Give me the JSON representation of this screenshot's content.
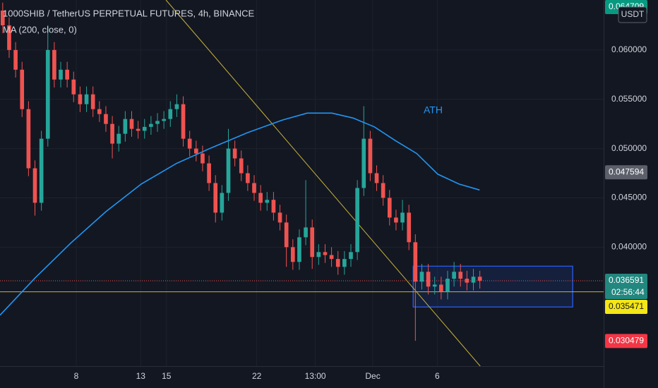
{
  "chart_data": {
    "type": "candlestick",
    "title": "1000SHIB / TetherUS PERPETUAL FUTURES, 4h, BINANCE",
    "subtitle": "MA (200, close, 0)",
    "currency": "USDT",
    "annotation": "ATH",
    "countdown": "02:56:44",
    "up_color": "#26a69a",
    "down_color": "#ef5350",
    "x": [
      2.3,
      2.8,
      3.3,
      3.8,
      4.3,
      4.8,
      5.3,
      5.8,
      6.3,
      6.8,
      7.3,
      7.8,
      8.3,
      8.8,
      9.3,
      9.8,
      10.3,
      10.8,
      11.3,
      11.8,
      12.3,
      12.8,
      13.3,
      13.8,
      14.3,
      14.8,
      15.3,
      15.8,
      16.3,
      16.8,
      17.3,
      17.8,
      18.3,
      18.8,
      19.3,
      19.8,
      20.3,
      20.8,
      21.3,
      21.8,
      22.3,
      22.8,
      23.3,
      23.8,
      24.3,
      24.8,
      25.3,
      25.8,
      26.3,
      26.8,
      27.3,
      27.8,
      28.3,
      28.8,
      29.3,
      29.8,
      30.3,
      30.8,
      31.3,
      31.8,
      32.3,
      32.8,
      33.3,
      33.8,
      34.3,
      34.8,
      35.3,
      35.8,
      36.3,
      36.8,
      37.3,
      37.8,
      38.3,
      38.8,
      39.3
    ],
    "open": [
      0.064,
      0.0625,
      0.06,
      0.058,
      0.054,
      0.048,
      0.0445,
      0.051,
      0.06,
      0.057,
      0.058,
      0.057,
      0.0555,
      0.0545,
      0.0555,
      0.054,
      0.0535,
      0.0525,
      0.0505,
      0.0515,
      0.053,
      0.052,
      0.0518,
      0.0522,
      0.0525,
      0.0528,
      0.053,
      0.054,
      0.0545,
      0.051,
      0.05,
      0.0495,
      0.0485,
      0.0465,
      0.0435,
      0.0455,
      0.05,
      0.049,
      0.0475,
      0.0465,
      0.0455,
      0.0445,
      0.0448,
      0.0435,
      0.0425,
      0.04,
      0.0385,
      0.041,
      0.042,
      0.039,
      0.0395,
      0.0392,
      0.0388,
      0.038,
      0.0388,
      0.0395,
      0.046,
      0.051,
      0.0475,
      0.0465,
      0.045,
      0.043,
      0.0425,
      0.0435,
      0.0405,
      0.0365,
      0.0375,
      0.036,
      0.0362,
      0.0355,
      0.0368,
      0.0375,
      0.0368,
      0.0364,
      0.037
    ],
    "high": [
      0.0648,
      0.0633,
      0.0608,
      0.0588,
      0.0548,
      0.0488,
      0.0518,
      0.0625,
      0.0608,
      0.0588,
      0.0588,
      0.0578,
      0.0563,
      0.0563,
      0.0563,
      0.0548,
      0.0543,
      0.0533,
      0.0523,
      0.0538,
      0.0538,
      0.0528,
      0.053,
      0.0533,
      0.0536,
      0.0538,
      0.0548,
      0.0555,
      0.0553,
      0.0518,
      0.0508,
      0.0503,
      0.0493,
      0.0473,
      0.0463,
      0.052,
      0.0508,
      0.0498,
      0.0483,
      0.0473,
      0.0463,
      0.0456,
      0.0456,
      0.0443,
      0.0433,
      0.0408,
      0.0418,
      0.0468,
      0.0428,
      0.0403,
      0.0403,
      0.04,
      0.0396,
      0.0396,
      0.0403,
      0.0468,
      0.0543,
      0.0518,
      0.0483,
      0.0473,
      0.0458,
      0.0438,
      0.0448,
      0.0443,
      0.0413,
      0.0383,
      0.0383,
      0.037,
      0.037,
      0.0376,
      0.0385,
      0.0383,
      0.0376,
      0.0378,
      0.0376
    ],
    "low": [
      0.0617,
      0.0592,
      0.0572,
      0.0532,
      0.0472,
      0.0432,
      0.0437,
      0.0502,
      0.0562,
      0.0562,
      0.0562,
      0.0547,
      0.0537,
      0.0537,
      0.0532,
      0.0527,
      0.0517,
      0.049,
      0.0497,
      0.0507,
      0.0512,
      0.051,
      0.051,
      0.0514,
      0.0517,
      0.052,
      0.0522,
      0.0532,
      0.0502,
      0.0492,
      0.0487,
      0.0477,
      0.0457,
      0.0425,
      0.0427,
      0.0447,
      0.0482,
      0.0467,
      0.0457,
      0.0447,
      0.0437,
      0.0437,
      0.0427,
      0.0417,
      0.038,
      0.0377,
      0.0377,
      0.0402,
      0.0378,
      0.0382,
      0.0384,
      0.038,
      0.0372,
      0.0372,
      0.038,
      0.0387,
      0.0452,
      0.0467,
      0.0457,
      0.0442,
      0.0422,
      0.0417,
      0.0417,
      0.0397,
      0.0305,
      0.0357,
      0.0352,
      0.0352,
      0.0347,
      0.0347,
      0.036,
      0.036,
      0.0356,
      0.0356,
      0.0358
    ],
    "close": [
      0.0625,
      0.06,
      0.058,
      0.054,
      0.048,
      0.0445,
      0.051,
      0.06,
      0.057,
      0.058,
      0.057,
      0.0555,
      0.0545,
      0.0555,
      0.054,
      0.0535,
      0.0525,
      0.0505,
      0.0515,
      0.053,
      0.052,
      0.0518,
      0.0522,
      0.0525,
      0.0528,
      0.053,
      0.054,
      0.0545,
      0.051,
      0.05,
      0.0495,
      0.0485,
      0.0465,
      0.0435,
      0.0455,
      0.05,
      0.049,
      0.0475,
      0.0465,
      0.0455,
      0.0445,
      0.0448,
      0.0435,
      0.0425,
      0.04,
      0.0385,
      0.041,
      0.042,
      0.039,
      0.0395,
      0.0392,
      0.0388,
      0.038,
      0.0388,
      0.0395,
      0.046,
      0.051,
      0.0475,
      0.0465,
      0.045,
      0.043,
      0.0425,
      0.0435,
      0.0405,
      0.0365,
      0.0375,
      0.036,
      0.0362,
      0.0355,
      0.0368,
      0.0375,
      0.0368,
      0.0364,
      0.037,
      0.0366
    ],
    "ma": {
      "color": "#2196f3",
      "x": [
        2.09,
        4.83,
        7.57,
        10.3,
        13.04,
        15.78,
        18.52,
        21.26,
        24.0,
        25.91,
        27.83,
        29.47,
        31.12,
        32.76,
        34.4,
        36.04,
        37.69,
        39.28
      ],
      "values": [
        0.0331,
        0.0369,
        0.0404,
        0.0436,
        0.0464,
        0.0485,
        0.0501,
        0.0516,
        0.0529,
        0.0536,
        0.0536,
        0.0531,
        0.0522,
        0.0508,
        0.0495,
        0.0474,
        0.0464,
        0.0458
      ]
    },
    "trendline": {
      "color": "#c9b23a",
      "x": [
        14.96,
        39.33
      ],
      "values": [
        0.06507,
        0.02793
      ]
    },
    "support": {
      "color": "#c9b23a",
      "value": 0.035471
    },
    "range_box": {
      "color": "#2962ff",
      "x": [
        34.13,
        46.5
      ],
      "values": [
        0.03807,
        0.03393
      ]
    },
    "price_line": {
      "color": "#ef5350",
      "value": 0.036591
    },
    "price_labels": [
      {
        "value": 0.064709,
        "color": "#089981"
      },
      {
        "value": 0.047594,
        "color": "#5d606b"
      },
      {
        "value": 0.036591,
        "color": "#22877f"
      },
      {
        "value": 0.035471,
        "color": "#f5e616"
      },
      {
        "value": 0.030479,
        "color": "#f23645"
      }
    ],
    "xlim": [
      2.09,
      48.9
    ],
    "ylim": [
      0.02793,
      0.06507
    ],
    "xticks": [
      8,
      15,
      22,
      {
        "value": 26.54,
        "label": "13:00"
      },
      {
        "value": 31,
        "label": "Dec"
      },
      {
        "value": 36,
        "label": "6"
      },
      13
    ],
    "yticks": [
      {
        "value": 0.04,
        "label": "0.040000"
      },
      {
        "value": 0.045,
        "label": "0.045000"
      },
      {
        "value": 0.05,
        "label": "0.050000"
      },
      {
        "value": 0.055,
        "label": "0.055000"
      },
      {
        "value": 0.06,
        "label": "0.060000"
      }
    ],
    "grid": true
  }
}
